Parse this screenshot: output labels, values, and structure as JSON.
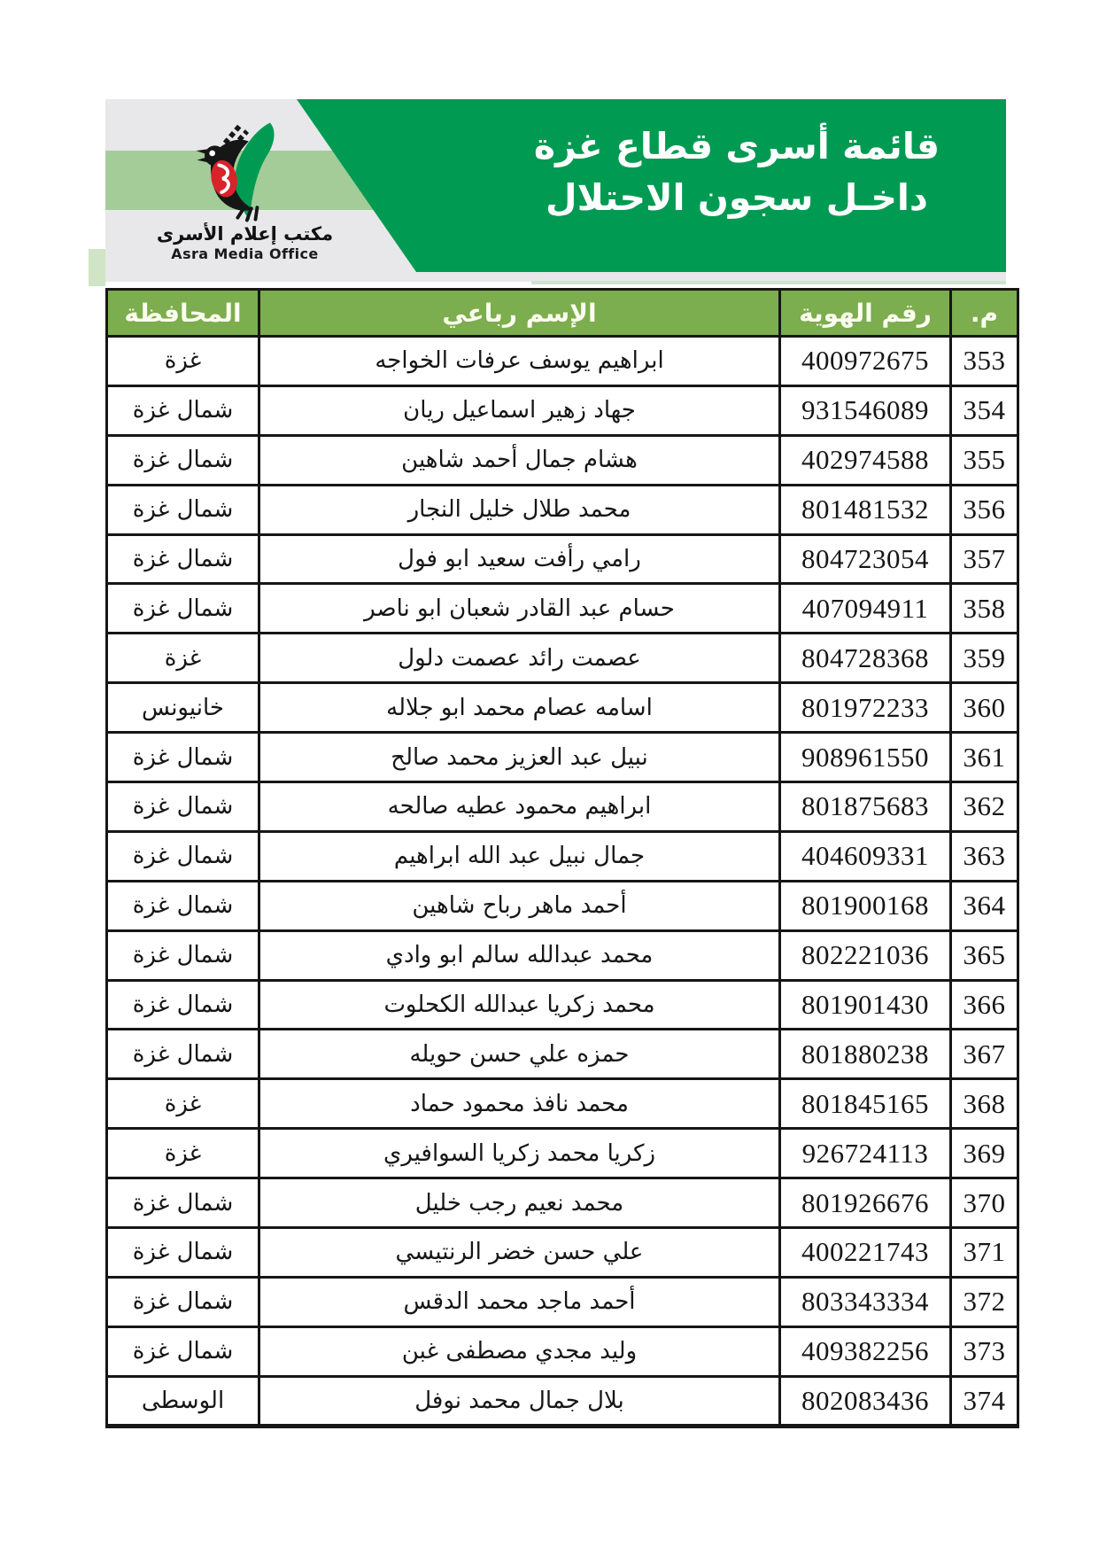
{
  "banner": {
    "title_line1": "قائمة أسرى قطاع غزة",
    "title_line2": "داخـل سجون الاحتلال",
    "logo": {
      "icon": "asra-bird-logo",
      "arabic_name": "مكتب إعلام الأسرى",
      "english_name": "Asra Media Office"
    },
    "colors": {
      "green": "#019a52",
      "panel_gray": "#e8e8ea",
      "band_light_green": "#a3cc98",
      "accent_line": "#cde4cf",
      "logo_red": "#d8232a",
      "logo_black": "#161616"
    }
  },
  "table": {
    "header_bg": "#7cad4e",
    "headers": {
      "serial": "م.",
      "id_number": "رقم الهوية",
      "full_name": "الإسم رباعي",
      "governorate": "المحافظة"
    },
    "rows": [
      {
        "serial": "353",
        "id_number": "400972675",
        "full_name": "ابراهيم يوسف عرفات الخواجه",
        "governorate": "غزة"
      },
      {
        "serial": "354",
        "id_number": "931546089",
        "full_name": "جهاد زهير اسماعيل ريان",
        "governorate": "شمال غزة"
      },
      {
        "serial": "355",
        "id_number": "402974588",
        "full_name": "هشام جمال أحمد شاهين",
        "governorate": "شمال غزة"
      },
      {
        "serial": "356",
        "id_number": "801481532",
        "full_name": "محمد طلال خليل النجار",
        "governorate": "شمال غزة"
      },
      {
        "serial": "357",
        "id_number": "804723054",
        "full_name": "رامي رأفت سعيد ابو فول",
        "governorate": "شمال غزة"
      },
      {
        "serial": "358",
        "id_number": "407094911",
        "full_name": "حسام عبد القادر شعبان ابو ناصر",
        "governorate": "شمال غزة"
      },
      {
        "serial": "359",
        "id_number": "804728368",
        "full_name": "عصمت رائد عصمت دلول",
        "governorate": "غزة"
      },
      {
        "serial": "360",
        "id_number": "801972233",
        "full_name": "اسامه عصام محمد ابو جلاله",
        "governorate": "خانيونس"
      },
      {
        "serial": "361",
        "id_number": "908961550",
        "full_name": "نبيل عبد العزيز محمد صالح",
        "governorate": "شمال غزة"
      },
      {
        "serial": "362",
        "id_number": "801875683",
        "full_name": "ابراهيم محمود عطيه صالحه",
        "governorate": "شمال غزة"
      },
      {
        "serial": "363",
        "id_number": "404609331",
        "full_name": "جمال نبيل عبد الله ابراهيم",
        "governorate": "شمال غزة"
      },
      {
        "serial": "364",
        "id_number": "801900168",
        "full_name": "أحمد ماهر رباح شاهين",
        "governorate": "شمال غزة"
      },
      {
        "serial": "365",
        "id_number": "802221036",
        "full_name": "محمد عبدالله سالم ابو وادي",
        "governorate": "شمال غزة"
      },
      {
        "serial": "366",
        "id_number": "801901430",
        "full_name": "محمد زكريا عبدالله الكحلوت",
        "governorate": "شمال غزة"
      },
      {
        "serial": "367",
        "id_number": "801880238",
        "full_name": "حمزه علي حسن حويله",
        "governorate": "شمال غزة"
      },
      {
        "serial": "368",
        "id_number": "801845165",
        "full_name": "محمد نافذ محمود حماد",
        "governorate": "غزة"
      },
      {
        "serial": "369",
        "id_number": "926724113",
        "full_name": "زكريا محمد زكريا السوافيري",
        "governorate": "غزة"
      },
      {
        "serial": "370",
        "id_number": "801926676",
        "full_name": "محمد نعيم رجب خليل",
        "governorate": "شمال غزة"
      },
      {
        "serial": "371",
        "id_number": "400221743",
        "full_name": "علي حسن خضر الرنتيسي",
        "governorate": "شمال غزة"
      },
      {
        "serial": "372",
        "id_number": "803343334",
        "full_name": "أحمد ماجد محمد الدقس",
        "governorate": "شمال غزة"
      },
      {
        "serial": "373",
        "id_number": "409382256",
        "full_name": "وليد مجدي مصطفى غبن",
        "governorate": "شمال غزة"
      },
      {
        "serial": "374",
        "id_number": "802083436",
        "full_name": "بلال جمال محمد نوفل",
        "governorate": "الوسطى"
      }
    ]
  }
}
